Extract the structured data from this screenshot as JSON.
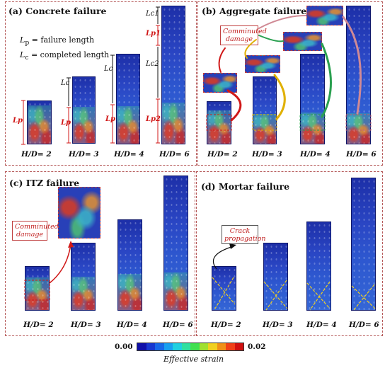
{
  "panels": {
    "a": {
      "title": "(a) Concrete failure",
      "definitions": {
        "lp_symbol": "L",
        "lp_sub": "p",
        "lp_text": " = failure length",
        "lc_symbol": "L",
        "lc_sub": "c",
        "lc_text": " = completed length"
      },
      "hd_labels": [
        "H/D= 2",
        "H/D= 3",
        "H/D= 4",
        "H/D= 6"
      ],
      "length_labels": {
        "lp": "Lp",
        "lc": "Lc",
        "lc1": "Lc1",
        "lp1": "Lp1",
        "lc2": "Lc2",
        "lp2": "Lp2"
      }
    },
    "b": {
      "title": "(b) Aggregate failure",
      "tag": "Comminuted damage",
      "hd_labels": [
        "H/D= 2",
        "H/D= 3",
        "H/D= 4",
        "H/D= 6"
      ]
    },
    "c": {
      "title": "(c) ITZ failure",
      "tag": "Comminuted damage",
      "hd_labels": [
        "H/D= 2",
        "H/D= 3",
        "H/D= 4",
        "H/D= 6"
      ]
    },
    "d": {
      "title": "(d) Mortar failure",
      "tag": "Crack propagation",
      "hd_labels": [
        "H/D= 2",
        "H/D= 3",
        "H/D= 4",
        "H/D= 6"
      ]
    }
  },
  "colorbar": {
    "min": "0.00",
    "max": "0.02",
    "title": "Effective strain",
    "colors": [
      "#1010a8",
      "#1838d0",
      "#1868e8",
      "#18a0f0",
      "#20d0e0",
      "#30e0a0",
      "#40e050",
      "#a0e030",
      "#f0d020",
      "#f09018",
      "#f04018",
      "#d01010"
    ]
  },
  "colors": {
    "panel_border": "#b65a5a",
    "highlight": "#d01818",
    "dashed_arrow_yellow": "#e0b000",
    "dashed_arrow_green": "#2aa050",
    "dashed_arrow_pink": "#c06070"
  }
}
